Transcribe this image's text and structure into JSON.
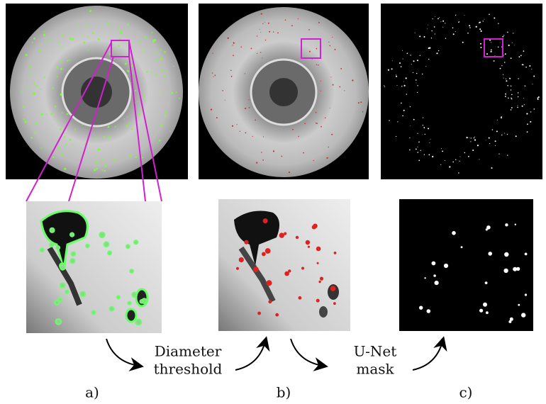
{
  "steps": [
    {
      "lines": [
        "Diameter",
        "threshold"
      ]
    },
    {
      "lines": [
        "U-Net",
        "mask"
      ]
    }
  ],
  "panel_labels": [
    "a)",
    "b)",
    "c)"
  ]
}
